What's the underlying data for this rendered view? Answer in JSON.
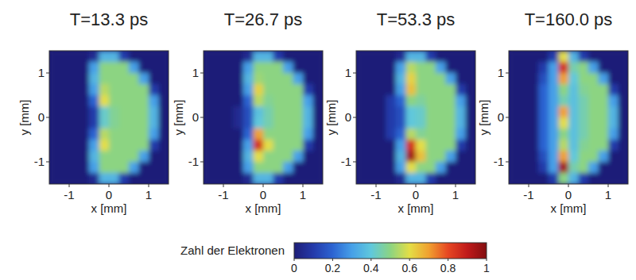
{
  "chart_data": [
    {
      "type": "heatmap",
      "title": "T=13.3 ps",
      "xlabel": "x [mm]",
      "ylabel": "y [mm]",
      "x": [
        -1.375,
        -1.125,
        -0.875,
        -0.625,
        -0.375,
        -0.125,
        0.125,
        0.375,
        0.625,
        0.875,
        1.125,
        1.375
      ],
      "y": [
        1.375,
        1.125,
        0.875,
        0.625,
        0.375,
        0.125,
        -0.125,
        -0.375,
        -0.625,
        -0.875,
        -1.125,
        -1.375
      ],
      "xlim": [
        -1.5,
        1.5
      ],
      "ylim": [
        -1.5,
        1.5
      ],
      "xticks": [
        -1,
        0,
        1
      ],
      "yticks": [
        -1,
        0,
        1
      ],
      "cells": [
        [
          0,
          0,
          0,
          0,
          0.05,
          0.35,
          0.35,
          0.1,
          0,
          0,
          0,
          0
        ],
        [
          0,
          0,
          0,
          0,
          0.3,
          0.5,
          0.5,
          0.5,
          0.3,
          0,
          0,
          0
        ],
        [
          0,
          0,
          0,
          0,
          0.35,
          0.5,
          0.5,
          0.5,
          0.5,
          0.3,
          0,
          0
        ],
        [
          0,
          0,
          0,
          0,
          0.3,
          0.55,
          0.5,
          0.5,
          0.5,
          0.5,
          0.1,
          0
        ],
        [
          0,
          0,
          0,
          0,
          0.2,
          0.6,
          0.5,
          0.5,
          0.5,
          0.5,
          0.3,
          0
        ],
        [
          0,
          0,
          0,
          0,
          0.1,
          0.42,
          0.48,
          0.5,
          0.5,
          0.5,
          0.35,
          0
        ],
        [
          0,
          0,
          0,
          0,
          0.1,
          0.42,
          0.48,
          0.5,
          0.5,
          0.5,
          0.35,
          0
        ],
        [
          0,
          0,
          0,
          0,
          0.2,
          0.55,
          0.5,
          0.5,
          0.5,
          0.5,
          0.3,
          0
        ],
        [
          0,
          0,
          0,
          0,
          0.3,
          0.6,
          0.5,
          0.5,
          0.5,
          0.5,
          0.1,
          0
        ],
        [
          0,
          0,
          0,
          0,
          0.35,
          0.5,
          0.5,
          0.5,
          0.5,
          0.3,
          0,
          0
        ],
        [
          0,
          0,
          0,
          0,
          0.3,
          0.5,
          0.5,
          0.5,
          0.3,
          0,
          0,
          0
        ],
        [
          0,
          0,
          0,
          0,
          0.05,
          0.35,
          0.35,
          0.1,
          0,
          0,
          0,
          0
        ]
      ]
    },
    {
      "type": "heatmap",
      "title": "T=26.7 ps",
      "xlabel": "x [mm]",
      "ylabel": "y [mm]",
      "x": [
        -1.375,
        -1.125,
        -0.875,
        -0.625,
        -0.375,
        -0.125,
        0.125,
        0.375,
        0.625,
        0.875,
        1.125,
        1.375
      ],
      "y": [
        1.375,
        1.125,
        0.875,
        0.625,
        0.375,
        0.125,
        -0.125,
        -0.375,
        -0.625,
        -0.875,
        -1.125,
        -1.375
      ],
      "xlim": [
        -1.5,
        1.5
      ],
      "ylim": [
        -1.5,
        1.5
      ],
      "xticks": [
        -1,
        0,
        1
      ],
      "yticks": [
        -1,
        0,
        1
      ],
      "cells": [
        [
          0,
          0,
          0,
          0,
          0.05,
          0.35,
          0.35,
          0.1,
          0,
          0,
          0,
          0
        ],
        [
          0,
          0,
          0,
          0,
          0.3,
          0.5,
          0.5,
          0.5,
          0.3,
          0,
          0,
          0
        ],
        [
          0,
          0,
          0,
          0,
          0.35,
          0.52,
          0.5,
          0.5,
          0.5,
          0.3,
          0,
          0
        ],
        [
          0,
          0,
          0,
          0,
          0.3,
          0.62,
          0.5,
          0.5,
          0.5,
          0.5,
          0.1,
          0
        ],
        [
          0,
          0,
          0,
          0,
          0.2,
          0.55,
          0.48,
          0.5,
          0.5,
          0.5,
          0.3,
          0
        ],
        [
          0,
          0,
          0,
          0.05,
          0.15,
          0.38,
          0.45,
          0.5,
          0.5,
          0.5,
          0.35,
          0
        ],
        [
          0,
          0,
          0,
          0.05,
          0.15,
          0.4,
          0.45,
          0.5,
          0.5,
          0.5,
          0.35,
          0
        ],
        [
          0,
          0,
          0,
          0,
          0.2,
          0.7,
          0.5,
          0.5,
          0.5,
          0.5,
          0.3,
          0
        ],
        [
          0,
          0,
          0,
          0,
          0.3,
          0.85,
          0.6,
          0.5,
          0.5,
          0.5,
          0.1,
          0
        ],
        [
          0,
          0,
          0,
          0,
          0.35,
          0.6,
          0.5,
          0.5,
          0.5,
          0.3,
          0,
          0
        ],
        [
          0,
          0,
          0,
          0,
          0.3,
          0.5,
          0.5,
          0.5,
          0.3,
          0,
          0,
          0
        ],
        [
          0,
          0,
          0,
          0,
          0.05,
          0.35,
          0.35,
          0.1,
          0,
          0,
          0,
          0
        ]
      ]
    },
    {
      "type": "heatmap",
      "title": "T=53.3 ps",
      "xlabel": "x [mm]",
      "ylabel": "y [mm]",
      "x": [
        -1.375,
        -1.125,
        -0.875,
        -0.625,
        -0.375,
        -0.125,
        0.125,
        0.375,
        0.625,
        0.875,
        1.125,
        1.375
      ],
      "y": [
        1.375,
        1.125,
        0.875,
        0.625,
        0.375,
        0.125,
        -0.125,
        -0.375,
        -0.625,
        -0.875,
        -1.125,
        -1.375
      ],
      "xlim": [
        -1.5,
        1.5
      ],
      "ylim": [
        -1.5,
        1.5
      ],
      "xticks": [
        -1,
        0,
        1
      ],
      "yticks": [
        -1,
        0,
        1
      ],
      "cells": [
        [
          0,
          0,
          0,
          0,
          0.05,
          0.35,
          0.35,
          0.1,
          0,
          0,
          0,
          0
        ],
        [
          0,
          0,
          0,
          0,
          0.3,
          0.55,
          0.5,
          0.5,
          0.3,
          0,
          0,
          0
        ],
        [
          0,
          0,
          0,
          0,
          0.35,
          0.62,
          0.5,
          0.5,
          0.5,
          0.3,
          0,
          0
        ],
        [
          0,
          0,
          0,
          0,
          0.3,
          0.65,
          0.5,
          0.5,
          0.5,
          0.5,
          0.1,
          0
        ],
        [
          0,
          0,
          0,
          0.1,
          0.2,
          0.5,
          0.47,
          0.5,
          0.5,
          0.5,
          0.3,
          0
        ],
        [
          0,
          0,
          0,
          0.1,
          0.15,
          0.4,
          0.42,
          0.5,
          0.5,
          0.5,
          0.35,
          0
        ],
        [
          0,
          0,
          0,
          0.1,
          0.15,
          0.4,
          0.42,
          0.5,
          0.5,
          0.5,
          0.35,
          0
        ],
        [
          0,
          0,
          0,
          0.1,
          0.2,
          0.55,
          0.48,
          0.5,
          0.5,
          0.5,
          0.3,
          0
        ],
        [
          0,
          0,
          0,
          0,
          0.3,
          0.85,
          0.6,
          0.5,
          0.5,
          0.5,
          0.1,
          0
        ],
        [
          0,
          0,
          0,
          0,
          0.35,
          0.95,
          0.65,
          0.5,
          0.5,
          0.3,
          0,
          0
        ],
        [
          0,
          0,
          0,
          0,
          0.3,
          0.6,
          0.5,
          0.5,
          0.3,
          0,
          0,
          0
        ],
        [
          0,
          0,
          0,
          0,
          0.05,
          0.35,
          0.35,
          0.1,
          0,
          0,
          0,
          0
        ]
      ]
    },
    {
      "type": "heatmap",
      "title": "T=160.0 ps",
      "xlabel": "x [mm]",
      "ylabel": "y [mm]",
      "x": [
        -1.375,
        -1.125,
        -0.875,
        -0.625,
        -0.375,
        -0.125,
        0.125,
        0.375,
        0.625,
        0.875,
        1.125,
        1.375
      ],
      "y": [
        1.375,
        1.125,
        0.875,
        0.625,
        0.375,
        0.125,
        -0.125,
        -0.375,
        -0.625,
        -0.875,
        -1.125,
        -1.375
      ],
      "xlim": [
        -1.5,
        1.5
      ],
      "ylim": [
        -1.5,
        1.5
      ],
      "xticks": [
        -1,
        0,
        1
      ],
      "yticks": [
        -1,
        0,
        1
      ],
      "cells": [
        [
          0,
          0,
          0,
          0,
          0.1,
          0.6,
          0.35,
          0.1,
          0,
          0,
          0,
          0
        ],
        [
          0,
          0,
          0,
          0.1,
          0.3,
          0.85,
          0.45,
          0.5,
          0.3,
          0,
          0,
          0
        ],
        [
          0,
          0,
          0,
          0.15,
          0.3,
          0.7,
          0.4,
          0.5,
          0.5,
          0.3,
          0,
          0
        ],
        [
          0,
          0,
          0,
          0.2,
          0.3,
          0.5,
          0.38,
          0.48,
          0.5,
          0.5,
          0.1,
          0
        ],
        [
          0,
          0,
          0,
          0.2,
          0.3,
          0.45,
          0.38,
          0.45,
          0.5,
          0.5,
          0.3,
          0
        ],
        [
          0,
          0,
          0,
          0.2,
          0.3,
          0.7,
          0.38,
          0.45,
          0.5,
          0.5,
          0.35,
          0
        ],
        [
          0,
          0,
          0,
          0.2,
          0.3,
          0.6,
          0.38,
          0.45,
          0.5,
          0.5,
          0.35,
          0
        ],
        [
          0,
          0,
          0,
          0.2,
          0.3,
          0.5,
          0.38,
          0.45,
          0.5,
          0.5,
          0.3,
          0
        ],
        [
          0,
          0,
          0,
          0.2,
          0.3,
          0.55,
          0.38,
          0.48,
          0.5,
          0.5,
          0.1,
          0
        ],
        [
          0,
          0,
          0,
          0.15,
          0.3,
          0.7,
          0.4,
          0.5,
          0.5,
          0.3,
          0,
          0
        ],
        [
          0,
          0,
          0,
          0.1,
          0.3,
          0.95,
          0.45,
          0.5,
          0.3,
          0,
          0,
          0
        ],
        [
          0,
          0,
          0,
          0,
          0.1,
          0.5,
          0.35,
          0.1,
          0,
          0,
          0,
          0
        ]
      ]
    }
  ],
  "colorbar": {
    "label": "Zahl der Elektronen",
    "zlim": [
      0,
      1
    ],
    "zticks": [
      0,
      0.2,
      0.4,
      0.6,
      0.8,
      1
    ]
  }
}
